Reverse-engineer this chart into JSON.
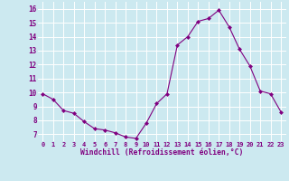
{
  "x": [
    0,
    1,
    2,
    3,
    4,
    5,
    6,
    7,
    8,
    9,
    10,
    11,
    12,
    13,
    14,
    15,
    16,
    17,
    18,
    19,
    20,
    21,
    22,
    23
  ],
  "y": [
    9.9,
    9.5,
    8.7,
    8.5,
    7.9,
    7.4,
    7.3,
    7.1,
    6.8,
    6.7,
    7.8,
    9.2,
    9.9,
    13.4,
    14.0,
    15.1,
    15.3,
    15.9,
    14.7,
    13.1,
    11.9,
    10.1,
    9.9,
    8.6
  ],
  "line_color": "#800080",
  "marker": "D",
  "marker_size": 2,
  "bg_color": "#cce9f0",
  "grid_color": "#ffffff",
  "xlabel": "Windchill (Refroidissement éolien,°C)",
  "xlabel_color": "#800080",
  "tick_color": "#800080",
  "ylim": [
    6.5,
    16.5
  ],
  "yticks": [
    7,
    8,
    9,
    10,
    11,
    12,
    13,
    14,
    15,
    16
  ],
  "xlim": [
    -0.5,
    23.5
  ],
  "xticks": [
    0,
    1,
    2,
    3,
    4,
    5,
    6,
    7,
    8,
    9,
    10,
    11,
    12,
    13,
    14,
    15,
    16,
    17,
    18,
    19,
    20,
    21,
    22,
    23
  ]
}
